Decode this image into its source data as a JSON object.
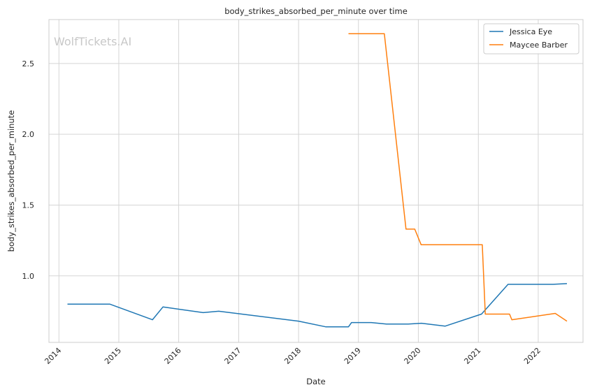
{
  "chart_data": {
    "type": "line",
    "title": "body_strikes_absorbed_per_minute over time",
    "xlabel": "Date",
    "ylabel": "body_strikes_absorbed_per_minute",
    "watermark": "WolfTickets.AI",
    "x_ticks": [
      "2014",
      "2015",
      "2016",
      "2017",
      "2018",
      "2019",
      "2020",
      "2021",
      "2022"
    ],
    "y_ticks": [
      "1.0",
      "1.5",
      "2.0",
      "2.5"
    ],
    "xlim": [
      "2013-11-01",
      "2022-10-01"
    ],
    "ylim": [
      0.53,
      2.81
    ],
    "grid": true,
    "legend_position": "top-right",
    "series": [
      {
        "name": "Jessica Eye",
        "color": "#1f77b4",
        "points": [
          [
            "2014-02-22",
            0.8
          ],
          [
            "2014-11-08",
            0.8
          ],
          [
            "2015-07-25",
            0.69
          ],
          [
            "2015-09-27",
            0.78
          ],
          [
            "2016-05-29",
            0.74
          ],
          [
            "2016-09-01",
            0.75
          ],
          [
            "2018-01-01",
            0.68
          ],
          [
            "2018-06-15",
            0.64
          ],
          [
            "2018-11-01",
            0.64
          ],
          [
            "2018-11-20",
            0.67
          ],
          [
            "2019-03-20",
            0.67
          ],
          [
            "2019-06-20",
            0.66
          ],
          [
            "2019-11-01",
            0.66
          ],
          [
            "2020-01-20",
            0.665
          ],
          [
            "2020-06-13",
            0.645
          ],
          [
            "2021-01-20",
            0.73
          ],
          [
            "2021-07-01",
            0.94
          ],
          [
            "2022-04-01",
            0.94
          ],
          [
            "2022-06-25",
            0.945
          ]
        ]
      },
      {
        "name": "Maycee Barber",
        "color": "#ff7f0e",
        "points": [
          [
            "2018-11-01",
            2.71
          ],
          [
            "2019-06-08",
            2.71
          ],
          [
            "2019-10-18",
            1.33
          ],
          [
            "2019-12-10",
            1.33
          ],
          [
            "2020-01-18",
            1.22
          ],
          [
            "2021-01-25",
            1.22
          ],
          [
            "2021-02-12",
            0.73
          ],
          [
            "2021-07-10",
            0.73
          ],
          [
            "2021-07-24",
            0.69
          ],
          [
            "2022-04-15",
            0.735
          ],
          [
            "2022-06-25",
            0.68
          ]
        ]
      }
    ]
  }
}
